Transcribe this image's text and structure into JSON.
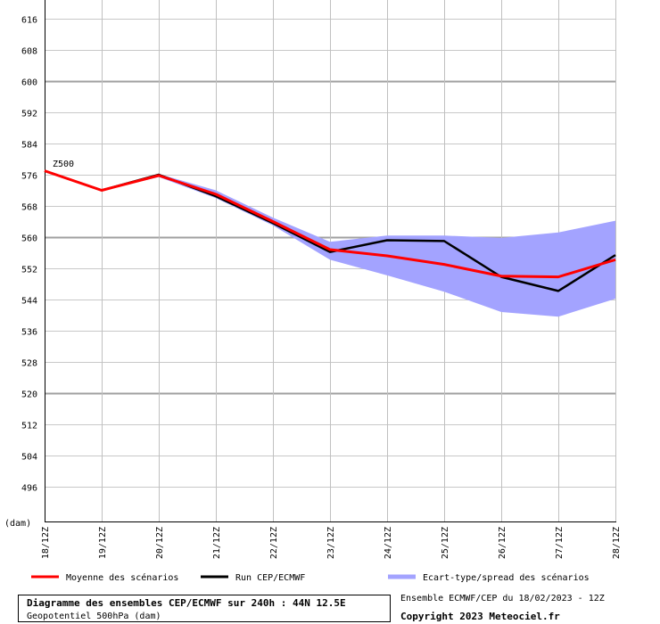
{
  "chart_data": {
    "type": "line",
    "series_label": "Z500",
    "y_unit": "(dam)",
    "ylim": [
      488,
      620
    ],
    "y_ticks": [
      616,
      608,
      600,
      592,
      584,
      576,
      568,
      560,
      552,
      544,
      536,
      528,
      520,
      512,
      504,
      496
    ],
    "major_gridlines": [
      600,
      560,
      520
    ],
    "grid": true,
    "categories": [
      "18/12Z",
      "19/12Z",
      "20/12Z",
      "21/12Z",
      "22/12Z",
      "23/12Z",
      "24/12Z",
      "25/12Z",
      "26/12Z",
      "27/12Z",
      "28/12Z"
    ],
    "series": [
      {
        "name": "Moyenne des scénarios",
        "color": "#ff0000",
        "values": [
          577.0,
          572.0,
          575.8,
          571.0,
          564.0,
          556.8,
          555.2,
          553.0,
          550.0,
          549.8,
          554.2
        ]
      },
      {
        "name": "Run CEP/ECMWF",
        "color": "#000000",
        "values": [
          577.0,
          572.0,
          576.0,
          570.5,
          563.6,
          556.2,
          559.2,
          559.0,
          549.8,
          546.2,
          555.4
        ]
      }
    ],
    "band": {
      "name": "Ecart-type/spread des scénarios",
      "color": "#a3a3ff",
      "upper": [
        577.1,
        572.1,
        576.2,
        572.0,
        565.0,
        558.8,
        560.4,
        560.4,
        559.8,
        561.2,
        564.2
      ],
      "lower": [
        576.9,
        571.9,
        575.4,
        570.0,
        563.0,
        554.2,
        550.2,
        546.0,
        540.8,
        539.6,
        544.2
      ]
    },
    "legend_placement": "bottom"
  },
  "footer": {
    "title": "Diagramme des ensembles CEP/ECMWF sur 240h : 44N 12.5E",
    "subtitle": "Geopotentiel 500hPa (dam)",
    "run_info": "Ensemble ECMWF/CEP du 18/02/2023 - 12Z",
    "copyright": "Copyright 2023 Meteociel.fr"
  }
}
